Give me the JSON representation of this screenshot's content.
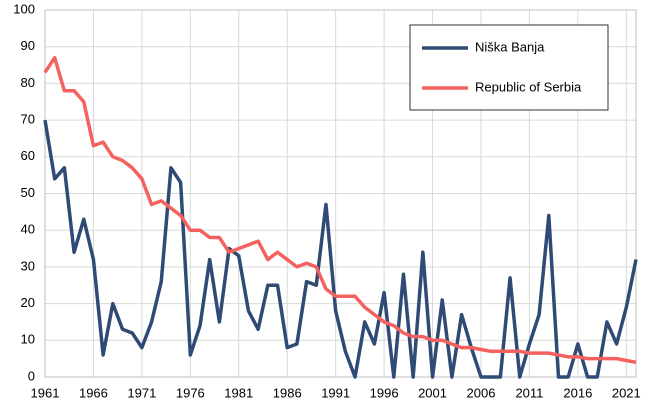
{
  "chart_data": {
    "type": "line",
    "x": [
      1961,
      1962,
      1963,
      1964,
      1965,
      1966,
      1967,
      1968,
      1969,
      1970,
      1971,
      1972,
      1973,
      1974,
      1975,
      1976,
      1977,
      1978,
      1979,
      1980,
      1981,
      1982,
      1983,
      1984,
      1985,
      1986,
      1987,
      1988,
      1989,
      1990,
      1991,
      1992,
      1993,
      1994,
      1995,
      1996,
      1997,
      1998,
      1999,
      2000,
      2001,
      2002,
      2003,
      2004,
      2005,
      2006,
      2007,
      2008,
      2009,
      2010,
      2011,
      2012,
      2013,
      2014,
      2015,
      2016,
      2017,
      2018,
      2019,
      2020,
      2021,
      2022
    ],
    "series": [
      {
        "name": "Niška Banja",
        "color": "#2f4b75",
        "values": [
          70,
          54,
          57,
          34,
          43,
          32,
          6,
          20,
          13,
          12,
          8,
          15,
          26,
          57,
          53,
          6,
          14,
          32,
          15,
          35,
          33,
          18,
          13,
          25,
          25,
          8,
          9,
          26,
          25,
          47,
          18,
          7,
          0,
          15,
          9,
          23,
          0,
          28,
          0,
          34,
          0,
          21,
          0,
          17,
          8,
          0,
          0,
          0,
          27,
          0,
          9,
          17,
          44,
          0,
          0,
          9,
          0,
          0,
          15,
          9,
          19,
          32
        ]
      },
      {
        "name": "Republic of Serbia",
        "color": "#f4625f",
        "values": [
          83,
          87,
          78,
          78,
          75,
          63,
          64,
          60,
          59,
          57,
          54,
          47,
          48,
          46,
          44,
          40,
          40,
          38,
          38,
          34,
          35,
          36,
          37,
          32,
          34,
          32,
          30,
          31,
          30,
          24,
          22,
          22,
          22,
          19,
          17,
          15,
          14,
          12,
          11,
          11,
          10,
          10,
          9,
          8,
          8,
          7.5,
          7,
          7,
          7,
          7,
          6.5,
          6.5,
          6.5,
          6,
          5.5,
          5.5,
          5,
          5,
          5,
          5,
          4.5,
          4
        ]
      }
    ],
    "xlim": [
      1961,
      2022
    ],
    "xticks": [
      1961,
      1966,
      1971,
      1976,
      1981,
      1986,
      1991,
      1996,
      2001,
      2006,
      2011,
      2016,
      2021
    ],
    "ylim": [
      0,
      100
    ],
    "yticks": [
      0,
      10,
      20,
      30,
      40,
      50,
      60,
      70,
      80,
      90,
      100
    ],
    "grid": true,
    "legend": "upper right"
  }
}
